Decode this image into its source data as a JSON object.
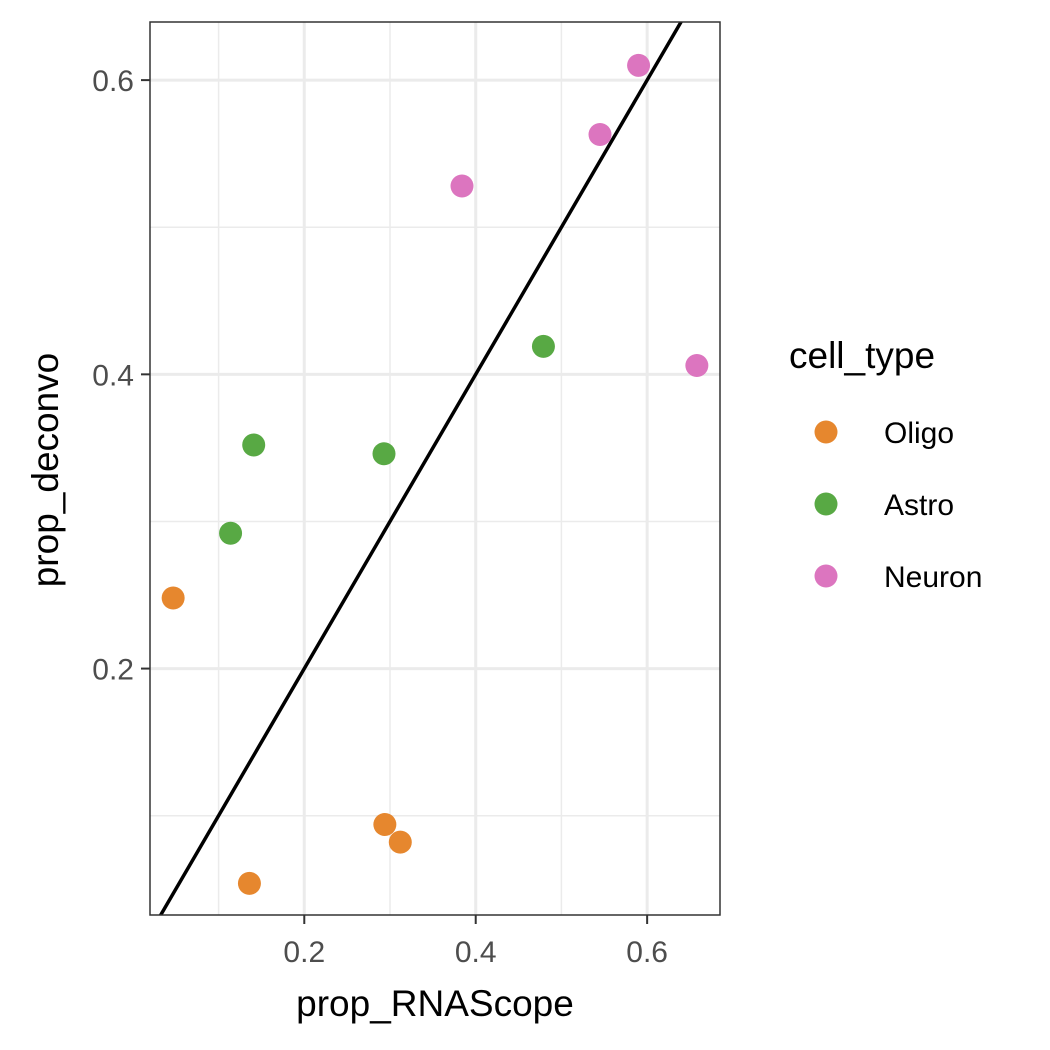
{
  "chart_data": {
    "type": "scatter",
    "title": "",
    "xlabel": "prop_RNAScope",
    "ylabel": "prop_deconvo",
    "xlim": [
      0.02,
      0.685
    ],
    "ylim": [
      0.0325,
      0.6395
    ],
    "x_ticks": [
      0.2,
      0.4,
      0.6
    ],
    "x_tick_labels": [
      "0.2",
      "0.4",
      "0.6"
    ],
    "x_minor_ticks": [
      0.1,
      0.3,
      0.5
    ],
    "y_ticks": [
      0.2,
      0.4,
      0.6
    ],
    "y_tick_labels": [
      "0.2",
      "0.4",
      "0.6"
    ],
    "y_minor_ticks": [
      0.1,
      0.3,
      0.5
    ],
    "grid": true,
    "reference_line": {
      "slope": 1,
      "intercept": 0,
      "color": "#000000"
    },
    "legend": {
      "title": "cell_type",
      "placement": "right"
    },
    "series": [
      {
        "name": "Oligo",
        "color": "#E6872E",
        "points": [
          {
            "x": 0.047,
            "y": 0.248
          },
          {
            "x": 0.136,
            "y": 0.054
          },
          {
            "x": 0.294,
            "y": 0.094
          },
          {
            "x": 0.312,
            "y": 0.082
          }
        ]
      },
      {
        "name": "Astro",
        "color": "#58A944",
        "points": [
          {
            "x": 0.114,
            "y": 0.292
          },
          {
            "x": 0.141,
            "y": 0.352
          },
          {
            "x": 0.293,
            "y": 0.346
          },
          {
            "x": 0.479,
            "y": 0.419
          }
        ]
      },
      {
        "name": "Neuron",
        "color": "#DC75BF",
        "points": [
          {
            "x": 0.384,
            "y": 0.528
          },
          {
            "x": 0.545,
            "y": 0.563
          },
          {
            "x": 0.59,
            "y": 0.61
          },
          {
            "x": 0.658,
            "y": 0.406
          }
        ]
      }
    ]
  }
}
